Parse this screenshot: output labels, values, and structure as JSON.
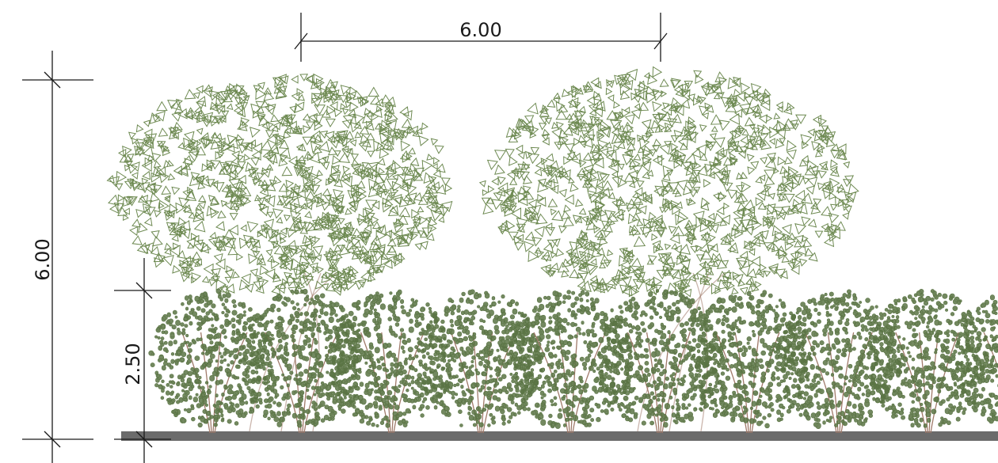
{
  "drawing": {
    "dimensions": {
      "tree_spacing": "6.00",
      "total_height": "6.00",
      "hedge_height": "2.50"
    },
    "colors": {
      "foliage_tree": "#6e8a52",
      "foliage_hedge": "#5a7444",
      "trunk": "#a07a6a",
      "ground": "#6b6b6b",
      "dimension_lines": "#1a1a1a"
    },
    "elements": {
      "tall_trees": 2,
      "hedge_shrubs": 10
    }
  }
}
